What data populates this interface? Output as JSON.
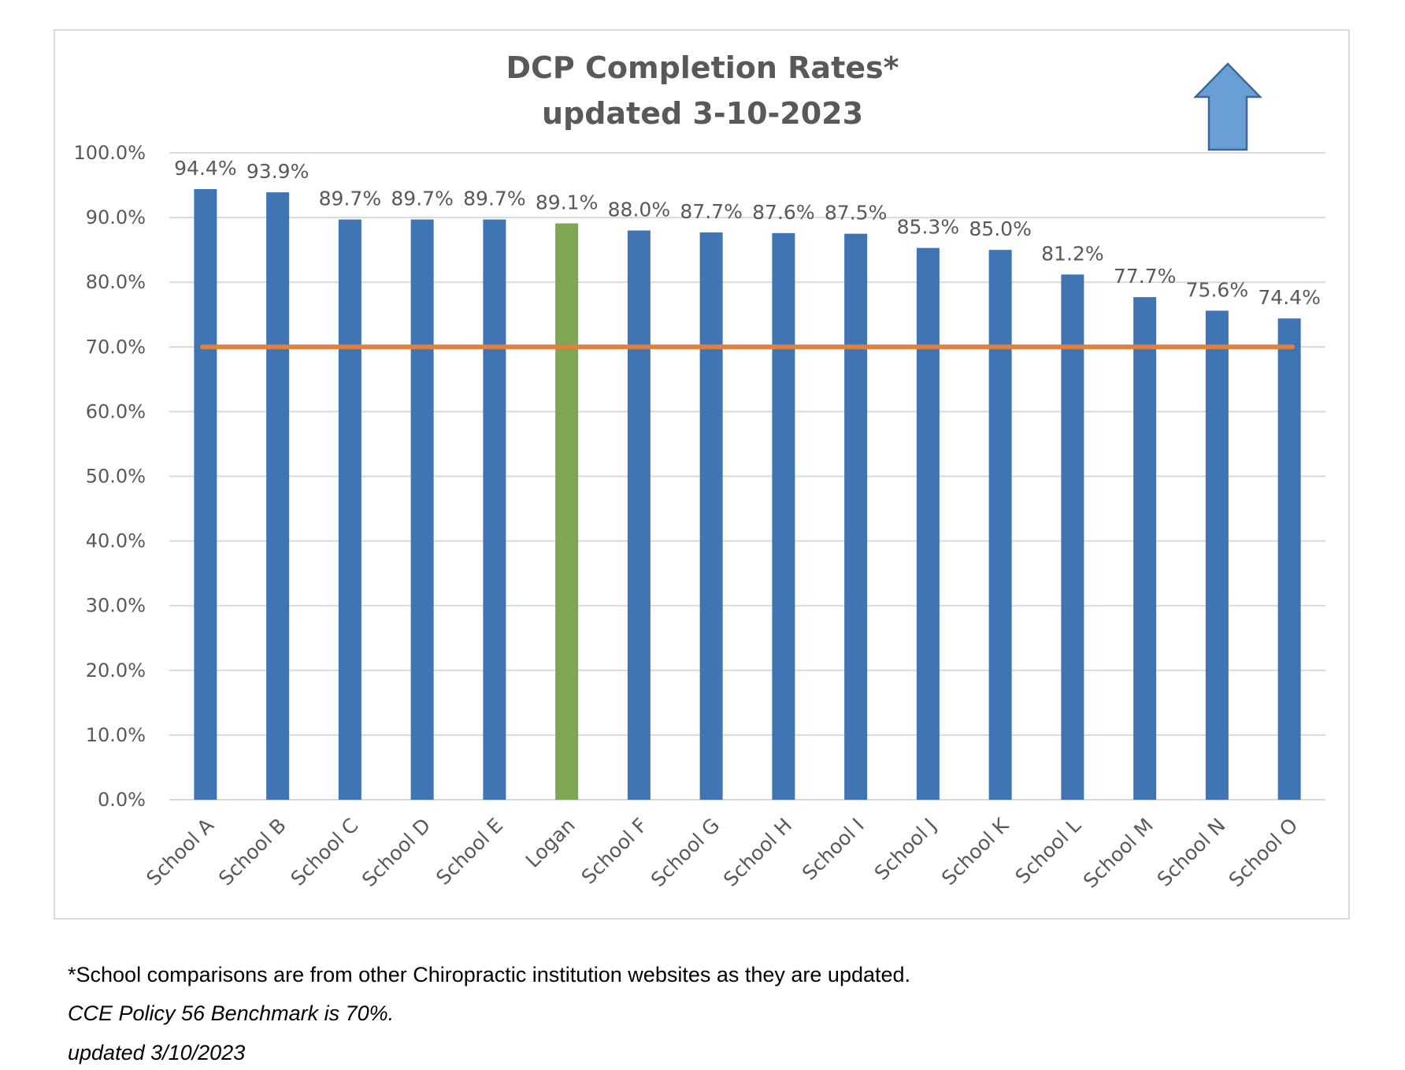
{
  "chart_data": {
    "type": "bar",
    "title": [
      "DCP Completion Rates*",
      "updated 3-10-2023"
    ],
    "categories": [
      "School A",
      "School B",
      "School C",
      "School D",
      "School E",
      "Logan",
      "School F",
      "School G",
      "School H",
      "School I",
      "School J",
      "School K",
      "School L",
      "School M",
      "School N",
      "School O"
    ],
    "values": [
      94.4,
      93.9,
      89.7,
      89.7,
      89.7,
      89.1,
      88.0,
      87.7,
      87.6,
      87.5,
      85.3,
      85.0,
      81.2,
      77.7,
      75.6,
      74.4
    ],
    "data_labels": [
      "94.4%",
      "93.9%",
      "89.7%",
      "89.7%",
      "89.7%",
      "89.1%",
      "88.0%",
      "87.7%",
      "87.6%",
      "87.5%",
      "85.3%",
      "85.0%",
      "81.2%",
      "77.7%",
      "75.6%",
      "74.4%"
    ],
    "highlight_category": "Logan",
    "y_ticks": [
      0,
      10,
      20,
      30,
      40,
      50,
      60,
      70,
      80,
      90,
      100
    ],
    "y_tick_labels": [
      "0.0%",
      "10.0%",
      "20.0%",
      "30.0%",
      "40.0%",
      "50.0%",
      "60.0%",
      "70.0%",
      "80.0%",
      "90.0%",
      "100.0%"
    ],
    "ylim": [
      0,
      100
    ],
    "grid": true,
    "benchmark": {
      "value": 70,
      "color": "#e0813f"
    },
    "colors": {
      "bar": "#4174b2",
      "highlight": "#7da752",
      "grid": "#d9d9d9",
      "arrow_fill": "#6a9fd6",
      "arrow_stroke": "#3d6796"
    },
    "annotations": [
      "up-arrow-icon"
    ]
  },
  "footnotes": {
    "line1": "*School comparisons are from other Chiropractic institution websites as they are updated.",
    "line2": "CCE Policy 56 Benchmark is 70%.",
    "line3": "updated 3/10/2023"
  }
}
